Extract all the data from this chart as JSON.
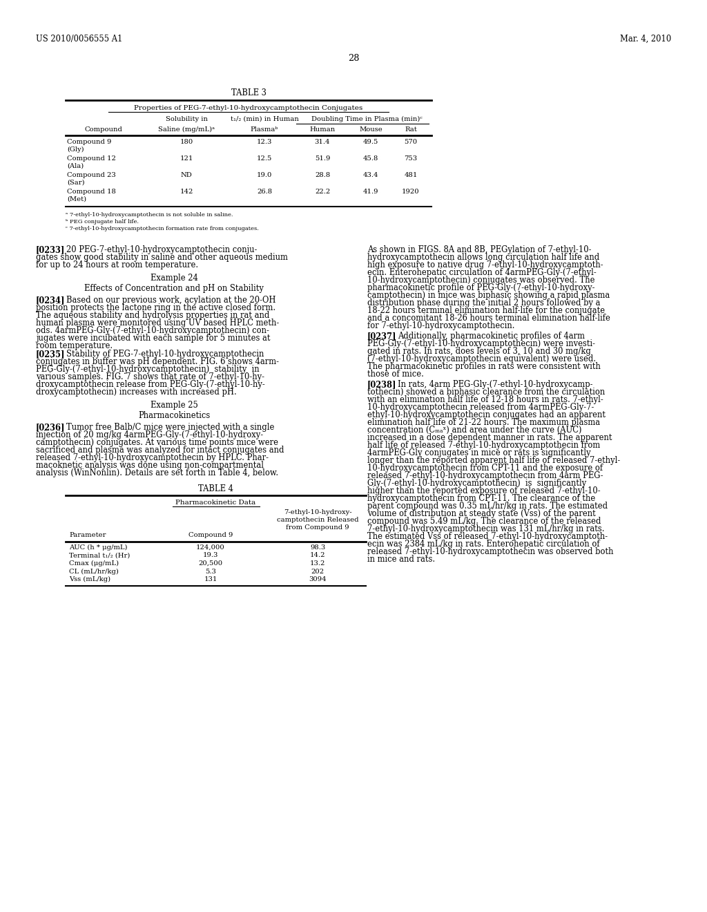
{
  "page_number": "28",
  "header_left": "US 2010/0056555 A1",
  "header_right": "Mar. 4, 2010",
  "background_color": "#ffffff",
  "table3": {
    "title": "TABLE 3",
    "subtitle": "Properties of PEG-7-ethyl-10-hydroxycamptothecin Conjugates",
    "rows": [
      [
        "Compound 9",
        "(Gly)",
        "180",
        "12.3",
        "31.4",
        "49.5",
        "570"
      ],
      [
        "Compound 12",
        "(Ala)",
        "121",
        "12.5",
        "51.9",
        "45.8",
        "753"
      ],
      [
        "Compound 23",
        "(Sar)",
        "ND",
        "19.0",
        "28.8",
        "43.4",
        "481"
      ],
      [
        "Compound 18",
        "(Met)",
        "142",
        "26.8",
        "22.2",
        "41.9",
        "1920"
      ]
    ],
    "footnotes": [
      "a 7-ethyl-10-hydroxycamptothecin is not soluble in saline.",
      "b PEG conjugate half life.",
      "c 7-ethyl-10-hydroxycamptothecin formation rate from conjugates."
    ]
  },
  "table4": {
    "title": "TABLE 4",
    "subtitle": "Pharmacokinetic Data",
    "rows": [
      [
        "AUC (h * μg/mL)",
        "124,000",
        "98.3"
      ],
      [
        "Terminal t₁/₂ (Hr)",
        "19.3",
        "14.2"
      ],
      [
        "Cmax (μg/mL)",
        "20,500",
        "13.2"
      ],
      [
        "CL (mL/hr/kg)",
        "5.3",
        "202"
      ],
      [
        "Vss (mL/kg)",
        "131",
        "3094"
      ]
    ]
  }
}
